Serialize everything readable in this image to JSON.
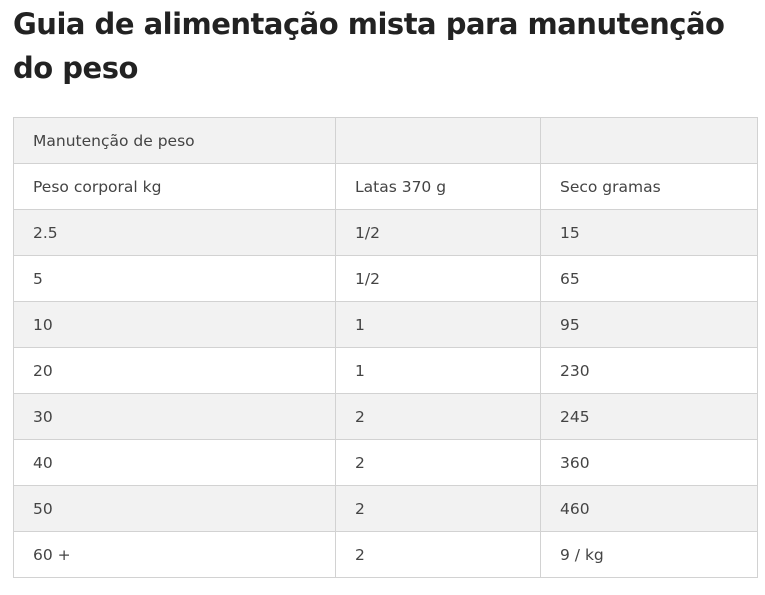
{
  "title": "Guia de alimentação mista para manutenção do peso",
  "table": {
    "caption_row": [
      "Manutenção de peso",
      "",
      ""
    ],
    "header_row": [
      "Peso corporal kg",
      "Latas 370 g",
      "Seco gramas"
    ],
    "rows": [
      [
        "2.5",
        "1/2",
        "15"
      ],
      [
        "5",
        "1/2",
        "65"
      ],
      [
        "10",
        "1",
        "95"
      ],
      [
        "20",
        "1",
        "230"
      ],
      [
        "30",
        "2",
        "245"
      ],
      [
        "40",
        "2",
        "360"
      ],
      [
        "50",
        "2",
        "460"
      ],
      [
        "60 +",
        "2",
        "9 / kg"
      ]
    ]
  },
  "colors": {
    "row_shade": "#f2f2f2",
    "row_plain": "#ffffff",
    "border": "#d2d2d2",
    "title_text": "#222222",
    "cell_text": "#444444"
  }
}
